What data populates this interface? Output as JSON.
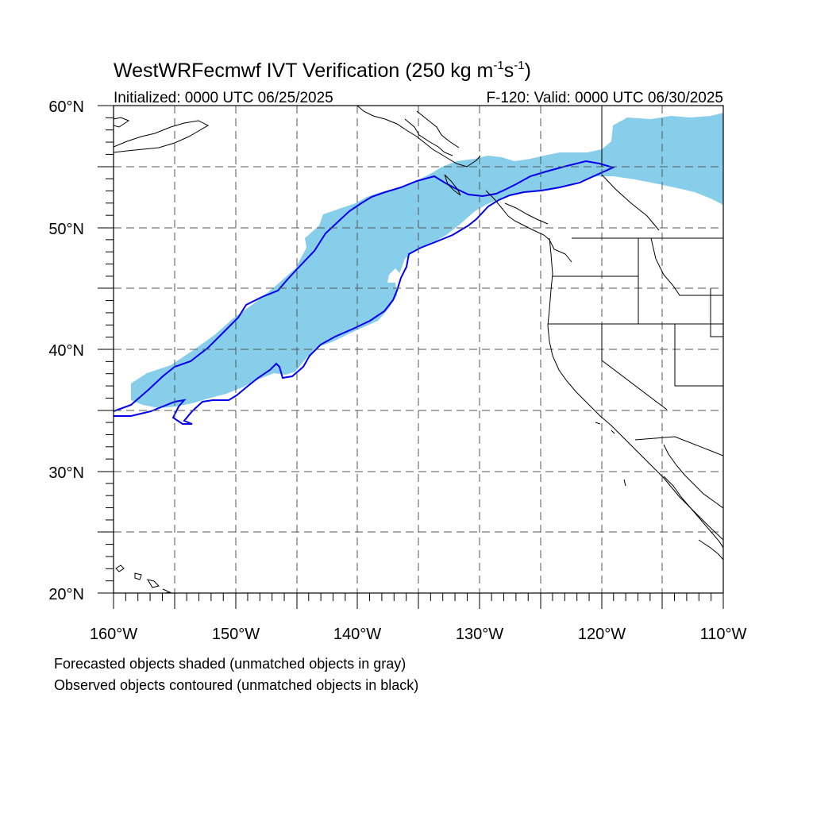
{
  "figure": {
    "title": "WestWRFecmwf IVT Verification (250 kg m",
    "title_sup1": "-1",
    "title_mid": "s",
    "title_sup2": "-1",
    "title_end": ")",
    "initialized": "Initialized: 0000 UTC 06/25/2025",
    "valid": "F-120: Valid: 0000 UTC 06/30/2025"
  },
  "axes": {
    "lat_labels": [
      "60°N",
      "50°N",
      "40°N",
      "30°N",
      "20°N"
    ],
    "lon_labels": [
      "160°W",
      "150°W",
      "140°W",
      "130°W",
      "120°W",
      "110°W"
    ],
    "lat_range": [
      20,
      60
    ],
    "lon_range": [
      -160,
      -110
    ],
    "grid": "dashed, every 5 degrees"
  },
  "legend": {
    "line1": "Forecasted objects shaded (unmatched objects in gray)",
    "line2": "Observed objects contoured (unmatched objects in black)"
  },
  "colors": {
    "forecast_fill": "#87ceeb",
    "observed_contour": "#0000ee",
    "coastline": "#000000",
    "grid": "#555555"
  }
}
